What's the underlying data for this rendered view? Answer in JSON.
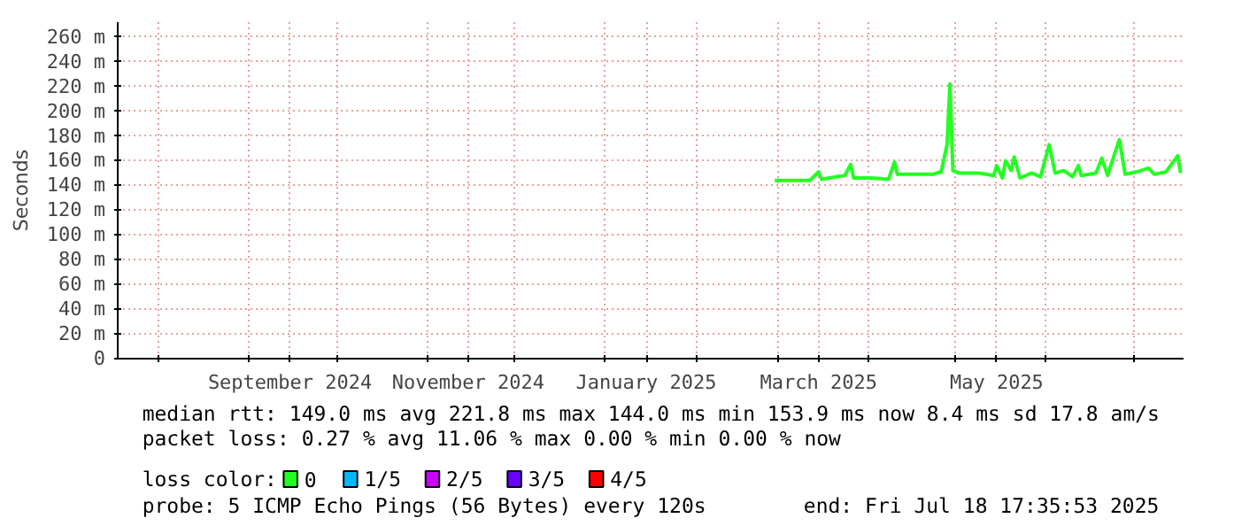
{
  "chart_data": {
    "type": "line",
    "ylabel": "Seconds",
    "legend_title": "loss color:",
    "legend": "bottom",
    "grid": true,
    "marker": "none",
    "line_style": "solid",
    "x": [
      "2025-02-28",
      "2025-03-12",
      "2025-03-15",
      "2025-03-16",
      "2025-03-21",
      "2025-03-24",
      "2025-03-26",
      "2025-03-27",
      "2025-04-02",
      "2025-04-08",
      "2025-04-10",
      "2025-04-11",
      "2025-04-17",
      "2025-04-23",
      "2025-04-26",
      "2025-04-28",
      "2025-04-29",
      "2025-04-30",
      "2025-05-02",
      "2025-05-05",
      "2025-05-09",
      "2025-05-14",
      "2025-05-15",
      "2025-05-17",
      "2025-05-18",
      "2025-05-20",
      "2025-05-21",
      "2025-05-23",
      "2025-05-27",
      "2025-05-30",
      "2025-06-02",
      "2025-06-04",
      "2025-06-07",
      "2025-06-10",
      "2025-06-12",
      "2025-06-13",
      "2025-06-18",
      "2025-06-20",
      "2025-06-22",
      "2025-06-26",
      "2025-06-28",
      "2025-07-02",
      "2025-07-06",
      "2025-07-08",
      "2025-07-12",
      "2025-07-16",
      "2025-07-17"
    ],
    "series": [
      {
        "name": "0",
        "color": "#22ff22",
        "values": [
          144,
          144,
          151,
          145,
          147,
          148,
          157,
          146,
          146,
          145,
          159,
          149,
          149,
          149,
          151,
          173,
          222,
          152,
          150,
          150,
          150,
          148,
          156,
          146,
          160,
          152,
          163,
          146,
          150,
          147,
          173,
          150,
          152,
          147,
          156,
          148,
          150,
          162,
          148,
          177,
          149,
          151,
          154,
          149,
          151,
          164,
          150
        ]
      },
      {
        "name": "1/5",
        "color": "#00b8ff",
        "values": [
          null,
          null,
          null,
          null,
          null,
          null,
          null,
          null,
          null,
          null,
          null,
          null,
          null,
          null,
          null,
          null,
          null,
          null,
          null,
          null,
          null,
          null,
          null,
          null,
          null,
          null,
          null,
          null,
          null,
          null,
          null,
          null,
          null,
          null,
          null,
          null,
          null,
          null,
          null,
          null,
          null,
          null,
          null,
          null,
          null,
          null,
          null
        ]
      },
      {
        "name": "2/5",
        "color": "#cc00ff",
        "values": [
          null,
          null,
          null,
          null,
          null,
          null,
          null,
          null,
          null,
          null,
          null,
          null,
          null,
          null,
          null,
          null,
          null,
          null,
          null,
          null,
          null,
          null,
          null,
          null,
          null,
          null,
          null,
          null,
          null,
          null,
          null,
          null,
          null,
          null,
          null,
          null,
          null,
          null,
          null,
          null,
          null,
          null,
          null,
          null,
          null,
          null,
          null
        ]
      },
      {
        "name": "3/5",
        "color": "#6a00ff",
        "values": [
          null,
          null,
          null,
          null,
          null,
          null,
          null,
          null,
          null,
          null,
          null,
          null,
          null,
          null,
          null,
          null,
          null,
          null,
          null,
          null,
          null,
          null,
          null,
          null,
          null,
          null,
          null,
          null,
          null,
          null,
          null,
          null,
          null,
          null,
          null,
          null,
          null,
          null,
          null,
          null,
          null,
          null,
          null,
          null,
          null,
          null,
          null
        ]
      },
      {
        "name": "4/5",
        "color": "#ff0000",
        "values": [
          null,
          null,
          null,
          null,
          null,
          null,
          null,
          null,
          null,
          null,
          null,
          null,
          null,
          null,
          null,
          null,
          null,
          null,
          null,
          null,
          null,
          null,
          null,
          null,
          null,
          null,
          null,
          null,
          null,
          null,
          null,
          null,
          null,
          null,
          null,
          null,
          null,
          null,
          null,
          null,
          null,
          null,
          null,
          null,
          null,
          null,
          null
        ]
      }
    ],
    "xlim": [
      "2024-07-18",
      "2025-07-18"
    ],
    "xticks": [
      {
        "value": "2024-08-01",
        "label": null
      },
      {
        "value": "2024-09-01",
        "label": null
      },
      {
        "value": "2024-09-15",
        "label": "September 2024"
      },
      {
        "value": "2024-10-01",
        "label": null
      },
      {
        "value": "2024-11-01",
        "label": null
      },
      {
        "value": "2024-11-15",
        "label": "November 2024"
      },
      {
        "value": "2024-12-01",
        "label": null
      },
      {
        "value": "2025-01-01",
        "label": null
      },
      {
        "value": "2025-01-15",
        "label": "January 2025"
      },
      {
        "value": "2025-02-01",
        "label": null
      },
      {
        "value": "2025-03-01",
        "label": null
      },
      {
        "value": "2025-03-15",
        "label": "March 2025"
      },
      {
        "value": "2025-04-01",
        "label": null
      },
      {
        "value": "2025-05-01",
        "label": null
      },
      {
        "value": "2025-05-15",
        "label": "May 2025"
      },
      {
        "value": "2025-06-01",
        "label": null
      },
      {
        "value": "2025-07-01",
        "label": null
      }
    ],
    "ylim": [
      0,
      272
    ],
    "yticks": [
      0,
      {
        "value": 20,
        "label": "20 m"
      },
      {
        "value": 40,
        "label": "40 m"
      },
      {
        "value": 60,
        "label": "60 m"
      },
      {
        "value": 80,
        "label": "80 m"
      },
      {
        "value": 100,
        "label": "100 m"
      },
      {
        "value": 120,
        "label": "120 m"
      },
      {
        "value": 140,
        "label": "140 m"
      },
      {
        "value": 160,
        "label": "160 m"
      },
      {
        "value": 180,
        "label": "180 m"
      },
      {
        "value": 200,
        "label": "200 m"
      },
      {
        "value": 220,
        "label": "220 m"
      },
      {
        "value": 240,
        "label": "240 m"
      },
      {
        "value": 260,
        "label": "260 m"
      }
    ],
    "annotations": [
      "median rtt:  149.0 ms avg  221.8 ms max  144.0 ms min  153.9 ms now  8.4 ms sd  17.8   am/s",
      "packet loss: 0.27 % avg  11.06 % max  0.00 % min  0.00 % now",
      "probe:       5 ICMP Echo Pings (56 Bytes) every 120s",
      "end: Fri Jul 18 17:35:53 2025"
    ]
  }
}
